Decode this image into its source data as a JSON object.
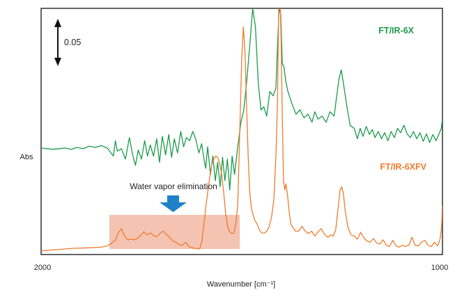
{
  "chart_data": {
    "type": "line",
    "xlabel": "Wavenumber [cm⁻¹]",
    "ylabel": "Abs",
    "x_ticks": [
      "2000",
      "1000"
    ],
    "xlim": [
      2000,
      1000
    ],
    "grid": false,
    "scale_bar_label": "0.05",
    "annotation": "Water vapor elimination",
    "water_region_x": [
      1830,
      1505
    ],
    "colors": {
      "ftir6x": "#1b9a4b",
      "ftir6xfv": "#ee7b2f",
      "annotation_box": "#f3b9a3",
      "arrow": "#1f82c8"
    },
    "series": [
      {
        "name": "FT/IR-6X",
        "points": [
          [
            2000,
            0.173
          ],
          [
            1985,
            0.172
          ],
          [
            1970,
            0.171
          ],
          [
            1955,
            0.172
          ],
          [
            1940,
            0.173
          ],
          [
            1925,
            0.171
          ],
          [
            1910,
            0.174
          ],
          [
            1895,
            0.172
          ],
          [
            1880,
            0.176
          ],
          [
            1865,
            0.174
          ],
          [
            1850,
            0.177
          ],
          [
            1835,
            0.173
          ],
          [
            1820,
            0.16
          ],
          [
            1815,
            0.185
          ],
          [
            1810,
            0.168
          ],
          [
            1800,
            0.172
          ],
          [
            1790,
            0.155
          ],
          [
            1780,
            0.19
          ],
          [
            1772,
            0.162
          ],
          [
            1765,
            0.145
          ],
          [
            1758,
            0.17
          ],
          [
            1750,
            0.155
          ],
          [
            1742,
            0.185
          ],
          [
            1735,
            0.16
          ],
          [
            1728,
            0.178
          ],
          [
            1720,
            0.16
          ],
          [
            1712,
            0.188
          ],
          [
            1705,
            0.15
          ],
          [
            1698,
            0.192
          ],
          [
            1690,
            0.162
          ],
          [
            1682,
            0.195
          ],
          [
            1675,
            0.158
          ],
          [
            1668,
            0.188
          ],
          [
            1660,
            0.165
          ],
          [
            1652,
            0.2
          ],
          [
            1645,
            0.175
          ],
          [
            1638,
            0.19
          ],
          [
            1630,
            0.185
          ],
          [
            1622,
            0.2
          ],
          [
            1615,
            0.188
          ],
          [
            1607,
            0.165
          ],
          [
            1600,
            0.18
          ],
          [
            1595,
            0.158
          ],
          [
            1590,
            0.14
          ],
          [
            1585,
            0.175
          ],
          [
            1578,
            0.13
          ],
          [
            1572,
            0.16
          ],
          [
            1566,
            0.12
          ],
          [
            1560,
            0.15
          ],
          [
            1554,
            0.11
          ],
          [
            1548,
            0.158
          ],
          [
            1542,
            0.12
          ],
          [
            1536,
            0.155
          ],
          [
            1530,
            0.105
          ],
          [
            1524,
            0.16
          ],
          [
            1518,
            0.13
          ],
          [
            1510,
            0.175
          ],
          [
            1502,
            0.215
          ],
          [
            1495,
            0.235
          ],
          [
            1488,
            0.28
          ],
          [
            1480,
            0.34
          ],
          [
            1473,
            0.4
          ],
          [
            1466,
            0.37
          ],
          [
            1459,
            0.28
          ],
          [
            1452,
            0.235
          ],
          [
            1445,
            0.24
          ],
          [
            1438,
            0.225
          ],
          [
            1430,
            0.265
          ],
          [
            1422,
            0.258
          ],
          [
            1415,
            0.27
          ],
          [
            1411,
            0.34
          ],
          [
            1407,
            0.4
          ],
          [
            1403,
            0.39
          ],
          [
            1399,
            0.31
          ],
          [
            1395,
            0.305
          ],
          [
            1390,
            0.28
          ],
          [
            1385,
            0.265
          ],
          [
            1375,
            0.245
          ],
          [
            1365,
            0.228
          ],
          [
            1355,
            0.235
          ],
          [
            1345,
            0.222
          ],
          [
            1335,
            0.228
          ],
          [
            1325,
            0.215
          ],
          [
            1318,
            0.232
          ],
          [
            1310,
            0.22
          ],
          [
            1300,
            0.225
          ],
          [
            1290,
            0.215
          ],
          [
            1280,
            0.232
          ],
          [
            1270,
            0.225
          ],
          [
            1258,
            0.285
          ],
          [
            1252,
            0.3
          ],
          [
            1246,
            0.275
          ],
          [
            1238,
            0.24
          ],
          [
            1230,
            0.21
          ],
          [
            1220,
            0.205
          ],
          [
            1212,
            0.188
          ],
          [
            1205,
            0.205
          ],
          [
            1198,
            0.192
          ],
          [
            1190,
            0.208
          ],
          [
            1182,
            0.195
          ],
          [
            1175,
            0.203
          ],
          [
            1168,
            0.19
          ],
          [
            1160,
            0.2
          ],
          [
            1152,
            0.188
          ],
          [
            1144,
            0.198
          ],
          [
            1136,
            0.185
          ],
          [
            1128,
            0.2
          ],
          [
            1120,
            0.19
          ],
          [
            1112,
            0.205
          ],
          [
            1104,
            0.198
          ],
          [
            1096,
            0.21
          ],
          [
            1088,
            0.196
          ],
          [
            1080,
            0.19
          ],
          [
            1072,
            0.2
          ],
          [
            1064,
            0.188
          ],
          [
            1056,
            0.198
          ],
          [
            1048,
            0.184
          ],
          [
            1040,
            0.196
          ],
          [
            1032,
            0.182
          ],
          [
            1024,
            0.195
          ],
          [
            1016,
            0.185
          ],
          [
            1008,
            0.197
          ],
          [
            1003,
            0.205
          ],
          [
            1000,
            0.22
          ]
        ]
      },
      {
        "name": "FT/IR-6XFV",
        "points": [
          [
            2000,
            0.006
          ],
          [
            1960,
            0.008
          ],
          [
            1920,
            0.01
          ],
          [
            1880,
            0.011
          ],
          [
            1850,
            0.012
          ],
          [
            1835,
            0.014
          ],
          [
            1825,
            0.018
          ],
          [
            1815,
            0.023
          ],
          [
            1808,
            0.035
          ],
          [
            1800,
            0.042
          ],
          [
            1792,
            0.03
          ],
          [
            1784,
            0.024
          ],
          [
            1776,
            0.025
          ],
          [
            1768,
            0.024
          ],
          [
            1760,
            0.026
          ],
          [
            1752,
            0.031
          ],
          [
            1744,
            0.037
          ],
          [
            1736,
            0.032
          ],
          [
            1728,
            0.035
          ],
          [
            1720,
            0.031
          ],
          [
            1712,
            0.029
          ],
          [
            1704,
            0.034
          ],
          [
            1696,
            0.038
          ],
          [
            1688,
            0.033
          ],
          [
            1680,
            0.028
          ],
          [
            1672,
            0.022
          ],
          [
            1664,
            0.02
          ],
          [
            1656,
            0.016
          ],
          [
            1648,
            0.015
          ],
          [
            1640,
            0.02
          ],
          [
            1632,
            0.013
          ],
          [
            1624,
            0.011
          ],
          [
            1616,
            0.01
          ],
          [
            1605,
            0.009
          ],
          [
            1600,
            0.02
          ],
          [
            1595,
            0.045
          ],
          [
            1590,
            0.075
          ],
          [
            1585,
            0.1
          ],
          [
            1580,
            0.125
          ],
          [
            1575,
            0.145
          ],
          [
            1570,
            0.155
          ],
          [
            1565,
            0.16
          ],
          [
            1560,
            0.158
          ],
          [
            1555,
            0.148
          ],
          [
            1550,
            0.13
          ],
          [
            1545,
            0.1
          ],
          [
            1540,
            0.065
          ],
          [
            1535,
            0.045
          ],
          [
            1530,
            0.037
          ],
          [
            1525,
            0.034
          ],
          [
            1520,
            0.035
          ],
          [
            1515,
            0.05
          ],
          [
            1510,
            0.08
          ],
          [
            1505,
            0.2
          ],
          [
            1500,
            0.32
          ],
          [
            1496,
            0.37
          ],
          [
            1492,
            0.33
          ],
          [
            1488,
            0.24
          ],
          [
            1484,
            0.16
          ],
          [
            1480,
            0.1
          ],
          [
            1476,
            0.075
          ],
          [
            1472,
            0.065
          ],
          [
            1467,
            0.055
          ],
          [
            1462,
            0.05
          ],
          [
            1456,
            0.04
          ],
          [
            1450,
            0.035
          ],
          [
            1444,
            0.035
          ],
          [
            1438,
            0.038
          ],
          [
            1432,
            0.045
          ],
          [
            1426,
            0.06
          ],
          [
            1420,
            0.09
          ],
          [
            1415,
            0.16
          ],
          [
            1411,
            0.25
          ],
          [
            1408,
            0.4
          ],
          [
            1405,
            0.43
          ],
          [
            1402,
            0.35
          ],
          [
            1399,
            0.22
          ],
          [
            1396,
            0.12
          ],
          [
            1393,
            0.105
          ],
          [
            1390,
            0.115
          ],
          [
            1386,
            0.096
          ],
          [
            1382,
            0.07
          ],
          [
            1378,
            0.05
          ],
          [
            1372,
            0.043
          ],
          [
            1366,
            0.038
          ],
          [
            1358,
            0.038
          ],
          [
            1350,
            0.046
          ],
          [
            1342,
            0.038
          ],
          [
            1334,
            0.034
          ],
          [
            1326,
            0.038
          ],
          [
            1318,
            0.03
          ],
          [
            1310,
            0.037
          ],
          [
            1302,
            0.042
          ],
          [
            1294,
            0.033
          ],
          [
            1286,
            0.028
          ],
          [
            1278,
            0.032
          ],
          [
            1272,
            0.03
          ],
          [
            1266,
            0.04
          ],
          [
            1260,
            0.075
          ],
          [
            1255,
            0.105
          ],
          [
            1251,
            0.11
          ],
          [
            1247,
            0.1
          ],
          [
            1242,
            0.07
          ],
          [
            1236,
            0.045
          ],
          [
            1228,
            0.032
          ],
          [
            1220,
            0.03
          ],
          [
            1212,
            0.025
          ],
          [
            1204,
            0.036
          ],
          [
            1196,
            0.027
          ],
          [
            1188,
            0.022
          ],
          [
            1180,
            0.02
          ],
          [
            1172,
            0.026
          ],
          [
            1164,
            0.019
          ],
          [
            1156,
            0.017
          ],
          [
            1148,
            0.024
          ],
          [
            1140,
            0.015
          ],
          [
            1132,
            0.013
          ],
          [
            1124,
            0.023
          ],
          [
            1116,
            0.014
          ],
          [
            1108,
            0.012
          ],
          [
            1100,
            0.015
          ],
          [
            1092,
            0.013
          ],
          [
            1084,
            0.015
          ],
          [
            1076,
            0.028
          ],
          [
            1068,
            0.015
          ],
          [
            1060,
            0.014
          ],
          [
            1052,
            0.02
          ],
          [
            1044,
            0.023
          ],
          [
            1036,
            0.015
          ],
          [
            1028,
            0.013
          ],
          [
            1020,
            0.02
          ],
          [
            1012,
            0.014
          ],
          [
            1006,
            0.025
          ],
          [
            1002,
            0.045
          ],
          [
            1000,
            0.08
          ]
        ]
      }
    ]
  }
}
